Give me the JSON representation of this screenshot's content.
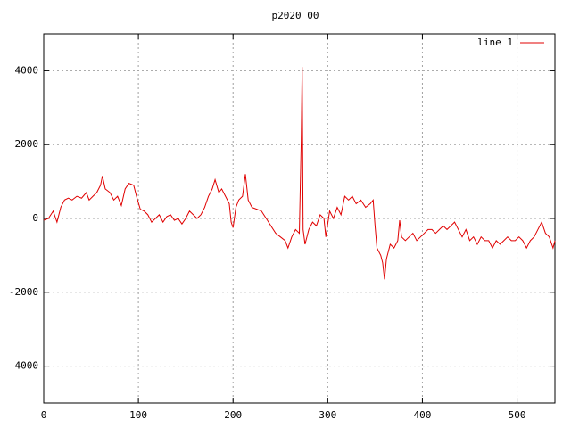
{
  "chart_data": {
    "type": "line",
    "title": "p2020_00",
    "x": [
      0,
      5,
      10,
      14,
      18,
      22,
      26,
      30,
      35,
      40,
      45,
      48,
      52,
      56,
      60,
      62,
      65,
      70,
      74,
      78,
      82,
      86,
      90,
      95,
      98,
      102,
      106,
      110,
      114,
      118,
      122,
      126,
      130,
      134,
      138,
      142,
      146,
      150,
      154,
      158,
      162,
      166,
      170,
      174,
      178,
      181,
      185,
      188,
      192,
      196,
      198,
      200,
      203,
      206,
      210,
      213,
      216,
      220,
      225,
      230,
      235,
      240,
      245,
      250,
      255,
      258,
      262,
      266,
      270,
      272,
      273,
      274,
      276,
      280,
      284,
      288,
      292,
      296,
      298,
      302,
      306,
      310,
      314,
      318,
      322,
      326,
      330,
      335,
      340,
      345,
      348,
      350,
      352,
      356,
      358,
      360,
      362,
      366,
      370,
      374,
      376,
      378,
      382,
      386,
      390,
      394,
      398,
      402,
      406,
      410,
      414,
      418,
      422,
      426,
      430,
      434,
      438,
      442,
      446,
      450,
      454,
      458,
      462,
      466,
      470,
      474,
      478,
      482,
      486,
      490,
      494,
      498,
      502,
      506,
      510,
      514,
      518,
      522,
      526,
      530,
      534,
      538,
      540
    ],
    "series": [
      {
        "name": "line 1",
        "color": "#e00000",
        "values": [
          -50,
          0,
          200,
          -100,
          300,
          500,
          550,
          500,
          600,
          550,
          700,
          500,
          600,
          700,
          900,
          1150,
          800,
          700,
          500,
          600,
          350,
          800,
          950,
          900,
          600,
          250,
          200,
          100,
          -100,
          0,
          100,
          -100,
          50,
          100,
          -50,
          0,
          -150,
          0,
          200,
          100,
          0,
          100,
          300,
          600,
          800,
          1050,
          700,
          800,
          600,
          400,
          -100,
          -250,
          300,
          500,
          600,
          1200,
          500,
          300,
          250,
          200,
          0,
          -200,
          -400,
          -500,
          -600,
          -800,
          -500,
          -300,
          -400,
          2100,
          4100,
          -300,
          -700,
          -300,
          -100,
          -200,
          100,
          0,
          -500,
          200,
          0,
          300,
          100,
          600,
          500,
          600,
          400,
          500,
          300,
          400,
          500,
          -200,
          -800,
          -1000,
          -1200,
          -1650,
          -1100,
          -700,
          -800,
          -600,
          -50,
          -500,
          -600,
          -500,
          -400,
          -600,
          -500,
          -400,
          -300,
          -300,
          -400,
          -300,
          -200,
          -300,
          -200,
          -100,
          -300,
          -500,
          -300,
          -600,
          -500,
          -700,
          -500,
          -600,
          -600,
          -800,
          -600,
          -700,
          -600,
          -500,
          -600,
          -600,
          -500,
          -600,
          -800,
          -600,
          -500,
          -300,
          -100,
          -400,
          -500,
          -800,
          -600
        ]
      }
    ],
    "xlim": [
      0,
      540
    ],
    "xticks": [
      0,
      100,
      200,
      300,
      400,
      500
    ],
    "ylim": [
      -5000,
      5000
    ],
    "yticks": [
      -4000,
      -2000,
      0,
      2000,
      4000
    ],
    "grid": true,
    "legend": "top-right"
  }
}
